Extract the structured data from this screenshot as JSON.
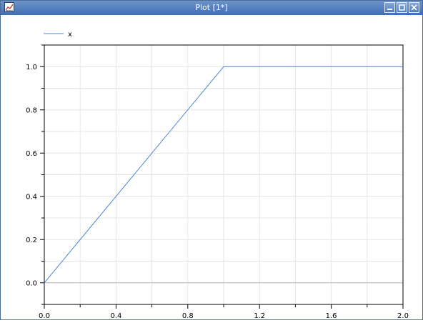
{
  "window": {
    "title": "Plot [1*]",
    "icon": "plot-window-icon",
    "buttons": [
      "minimize-icon",
      "maximize-icon",
      "close-icon"
    ],
    "titlebar_color": "#3f6eb4"
  },
  "chart_data": {
    "type": "line",
    "title": "",
    "xlabel": "",
    "ylabel": "",
    "xlim": [
      0.0,
      2.0
    ],
    "ylim": [
      -0.1,
      1.1
    ],
    "grid": true,
    "legend_position": "top-left",
    "xticks": [
      "0.0",
      "0.4",
      "0.8",
      "1.2",
      "1.6",
      "2.0"
    ],
    "yticks": [
      "0.0",
      "0.2",
      "0.4",
      "0.6",
      "0.8",
      "1.0"
    ],
    "series": [
      {
        "name": "x",
        "color": "#4f86d1",
        "x": [
          0.0,
          1.0,
          2.0
        ],
        "y": [
          0.0,
          1.0,
          1.0
        ]
      }
    ]
  }
}
